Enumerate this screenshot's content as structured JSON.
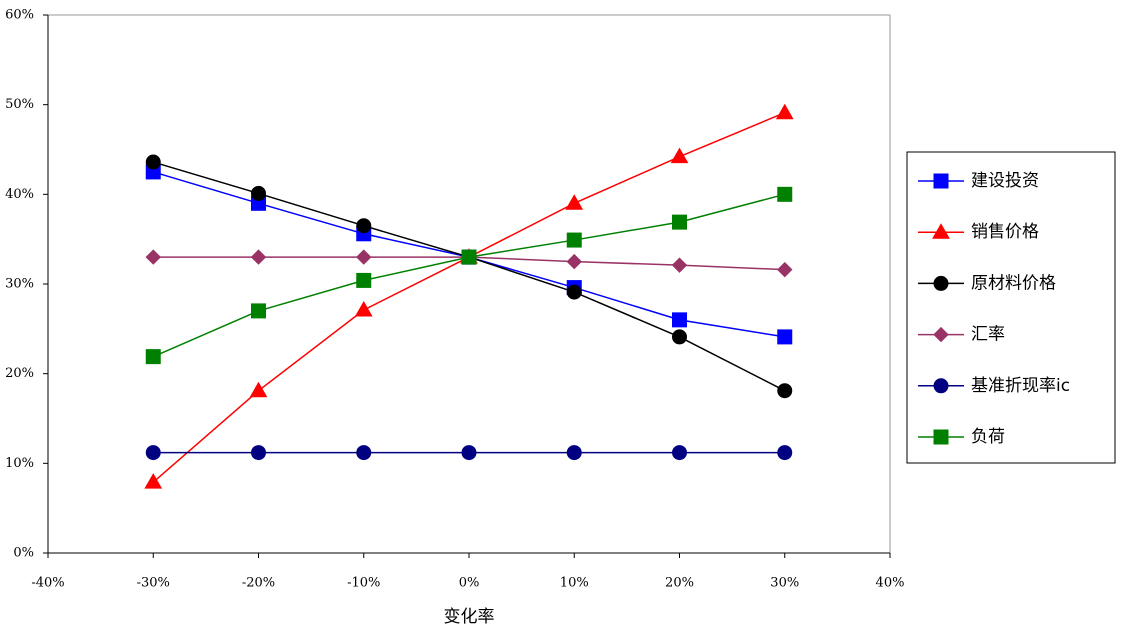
{
  "chart_data": {
    "type": "line",
    "x_label": "变化率",
    "x": [
      -30,
      -20,
      -10,
      0,
      10,
      20,
      30
    ],
    "xlim": [
      -40,
      40
    ],
    "xticks": [
      {
        "value": -40,
        "label": "-40%"
      },
      {
        "value": -30,
        "label": "-30%"
      },
      {
        "value": -20,
        "label": "-20%"
      },
      {
        "value": -10,
        "label": "-10%"
      },
      {
        "value": 0,
        "label": "0%"
      },
      {
        "value": 10,
        "label": "10%"
      },
      {
        "value": 20,
        "label": "20%"
      },
      {
        "value": 30,
        "label": "30%"
      },
      {
        "value": 40,
        "label": "40%"
      }
    ],
    "ylim": [
      0,
      60
    ],
    "yticks": [
      {
        "value": 0,
        "label": "0%"
      },
      {
        "value": 10,
        "label": "10%"
      },
      {
        "value": 20,
        "label": "20%"
      },
      {
        "value": 30,
        "label": "30%"
      },
      {
        "value": 40,
        "label": "40%"
      },
      {
        "value": 50,
        "label": "50%"
      },
      {
        "value": 60,
        "label": "60%"
      }
    ],
    "legend": "right",
    "series": [
      {
        "name": "建设投资",
        "color": "#0000ff",
        "marker": "square",
        "values": [
          42.5,
          39,
          35.6,
          33,
          29.6,
          26,
          24.1
        ]
      },
      {
        "name": "销售价格",
        "color": "#ff0000",
        "marker": "triangle",
        "values": [
          7.9,
          18.1,
          27.1,
          33,
          39,
          44.2,
          49.1
        ]
      },
      {
        "name": "原材料价格",
        "color": "#000000",
        "marker": "circle",
        "values": [
          43.6,
          40.1,
          36.5,
          33,
          29.1,
          24.1,
          18.1
        ]
      },
      {
        "name": "汇率",
        "color": "#993366",
        "marker": "diamond",
        "values": [
          33,
          33,
          33,
          33,
          32.5,
          32.1,
          31.6
        ]
      },
      {
        "name": "基准折现率ic",
        "color": "#000080",
        "marker": "circle",
        "values": [
          11.2,
          11.2,
          11.2,
          11.2,
          11.2,
          11.2,
          11.2
        ]
      },
      {
        "name": "负荷",
        "color": "#008000",
        "marker": "square",
        "values": [
          21.9,
          27,
          30.4,
          33,
          34.9,
          36.9,
          40
        ]
      }
    ]
  }
}
